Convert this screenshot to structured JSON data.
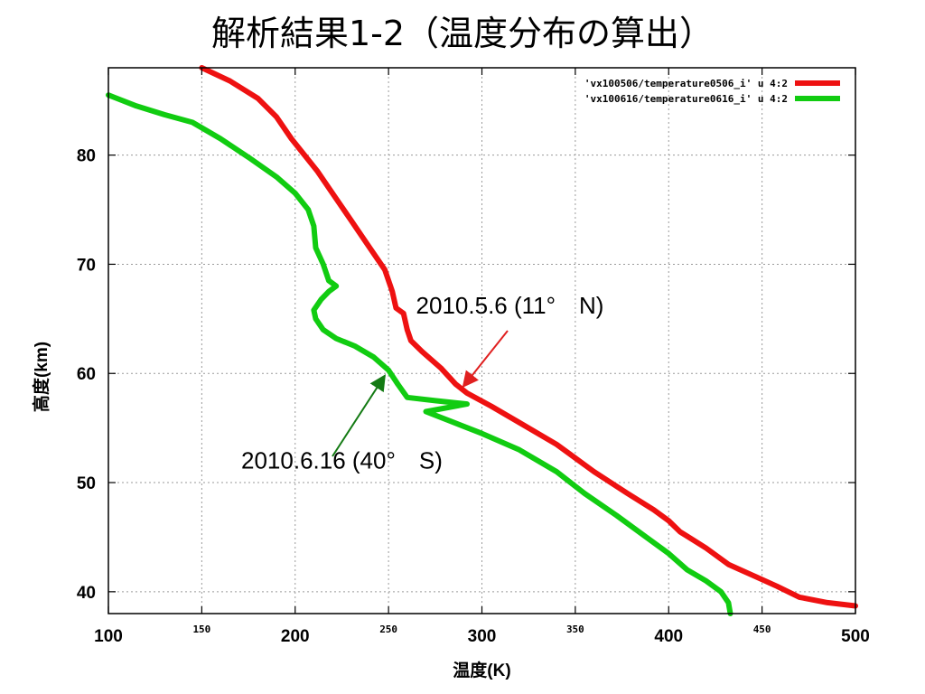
{
  "slide": {
    "title": "解析結果1-2（温度分布の算出）"
  },
  "colors": {
    "series_red": "#ee1111",
    "series_green": "#11cc11",
    "arrow_red": "#e02020",
    "arrow_green": "#137a13",
    "grid": "#9a9a9a"
  },
  "chart_data": {
    "type": "line",
    "xlabel": "温度(K)",
    "ylabel": "高度(km)",
    "xlim": [
      100,
      500
    ],
    "ylim": [
      38,
      88
    ],
    "x_ticks": [
      {
        "value": 100,
        "label": "100",
        "style": "big"
      },
      {
        "value": 150,
        "label": "150",
        "style": "small"
      },
      {
        "value": 200,
        "label": "200",
        "style": "big"
      },
      {
        "value": 250,
        "label": "250",
        "style": "small"
      },
      {
        "value": 300,
        "label": "300",
        "style": "big"
      },
      {
        "value": 350,
        "label": "350",
        "style": "small"
      },
      {
        "value": 400,
        "label": "400",
        "style": "big"
      },
      {
        "value": 450,
        "label": "450",
        "style": "small"
      },
      {
        "value": 500,
        "label": "500",
        "style": "big"
      }
    ],
    "y_ticks": [
      {
        "value": 40,
        "label": "40"
      },
      {
        "value": 50,
        "label": "50"
      },
      {
        "value": 60,
        "label": "60"
      },
      {
        "value": 70,
        "label": "70"
      },
      {
        "value": 80,
        "label": "80"
      }
    ],
    "grid": true,
    "legend_position": "top-right",
    "series": [
      {
        "name": "'vx100506/temperature0506_i' u 4:2",
        "color": "#ee1111",
        "points": [
          [
            150,
            88.0
          ],
          [
            165,
            86.8
          ],
          [
            180,
            85.2
          ],
          [
            190,
            83.5
          ],
          [
            198,
            81.5
          ],
          [
            205,
            80.0
          ],
          [
            212,
            78.5
          ],
          [
            220,
            76.5
          ],
          [
            230,
            74.0
          ],
          [
            240,
            71.5
          ],
          [
            248,
            69.5
          ],
          [
            252,
            67.5
          ],
          [
            254,
            66.0
          ],
          [
            258,
            65.5
          ],
          [
            260,
            64.0
          ],
          [
            262,
            63.0
          ],
          [
            268,
            62.0
          ],
          [
            278,
            60.5
          ],
          [
            286,
            59.0
          ],
          [
            292,
            58.2
          ],
          [
            305,
            57.0
          ],
          [
            320,
            55.5
          ],
          [
            340,
            53.5
          ],
          [
            360,
            51.0
          ],
          [
            378,
            49.0
          ],
          [
            392,
            47.5
          ],
          [
            400,
            46.5
          ],
          [
            406,
            45.5
          ],
          [
            420,
            44.0
          ],
          [
            432,
            42.5
          ],
          [
            445,
            41.5
          ],
          [
            458,
            40.5
          ],
          [
            470,
            39.5
          ],
          [
            485,
            39.0
          ],
          [
            500,
            38.7
          ]
        ]
      },
      {
        "name": "'vx100616/temperature0616_i' u 4:2",
        "color": "#11cc11",
        "points": [
          [
            100,
            85.5
          ],
          [
            115,
            84.5
          ],
          [
            130,
            83.7
          ],
          [
            145,
            83.0
          ],
          [
            160,
            81.5
          ],
          [
            175,
            79.8
          ],
          [
            190,
            78.0
          ],
          [
            200,
            76.5
          ],
          [
            207,
            75.0
          ],
          [
            210,
            73.5
          ],
          [
            211,
            71.5
          ],
          [
            215,
            70.0
          ],
          [
            218,
            68.5
          ],
          [
            222,
            68.0
          ],
          [
            218,
            67.5
          ],
          [
            214,
            66.8
          ],
          [
            210,
            65.8
          ],
          [
            211,
            65.0
          ],
          [
            215,
            64.0
          ],
          [
            222,
            63.2
          ],
          [
            232,
            62.5
          ],
          [
            242,
            61.5
          ],
          [
            250,
            60.3
          ],
          [
            255,
            59.0
          ],
          [
            260,
            57.8
          ],
          [
            275,
            57.5
          ],
          [
            292,
            57.2
          ],
          [
            270,
            56.5
          ],
          [
            285,
            55.5
          ],
          [
            300,
            54.5
          ],
          [
            320,
            53.0
          ],
          [
            340,
            51.0
          ],
          [
            355,
            49.0
          ],
          [
            372,
            47.0
          ],
          [
            388,
            45.0
          ],
          [
            400,
            43.5
          ],
          [
            410,
            42.0
          ],
          [
            420,
            41.0
          ],
          [
            428,
            40.0
          ],
          [
            432,
            39.0
          ],
          [
            433,
            38.0
          ]
        ]
      }
    ],
    "annotations": [
      {
        "text": "2010.5.6  (11°　N)",
        "series": 0,
        "target": [
          290,
          58.8
        ],
        "label_at": [
          315,
          65.5
        ]
      },
      {
        "text": "2010.6.16 (40°　S)",
        "series": 1,
        "target": [
          248,
          59.8
        ],
        "label_at": [
          225,
          51.3
        ]
      }
    ]
  }
}
